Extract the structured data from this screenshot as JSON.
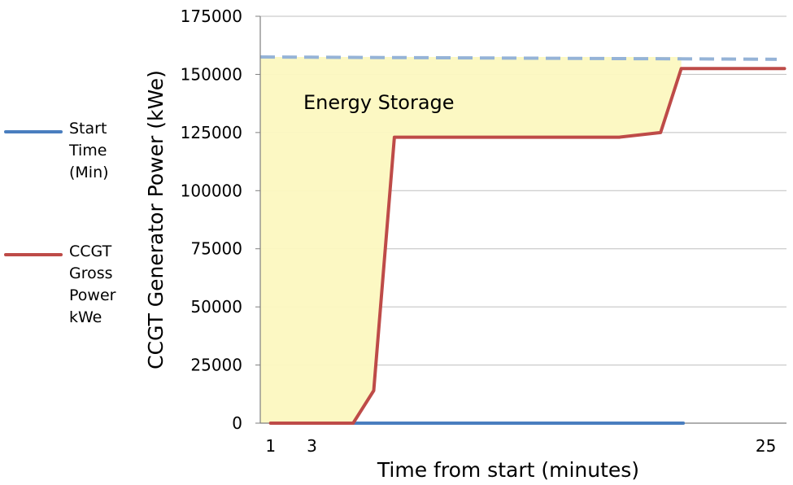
{
  "chart_data": {
    "type": "line",
    "ylabel": "CCGT Generator Power (kWe)",
    "xlabel": "Time from start (minutes)",
    "ylim": [
      0,
      175000
    ],
    "yticks": [
      0,
      25000,
      50000,
      75000,
      100000,
      125000,
      150000,
      175000
    ],
    "ytick_labels": [
      "0",
      "25000",
      "50000",
      "75000",
      "100000",
      "125000",
      "150000",
      "175000"
    ],
    "xlim": [
      0.5,
      26
    ],
    "xticks": [
      1,
      3,
      25
    ],
    "xtick_labels": [
      "1",
      "3",
      "25"
    ],
    "grid": "horizontal",
    "legend_position": "left",
    "series": [
      {
        "name": "Start Time (Min)",
        "color": "#4a7ebf",
        "x": [
          5,
          21
        ],
        "y": [
          0,
          0
        ]
      },
      {
        "name": "CCGT Gross Power kWe",
        "color": "#be4b48",
        "x": [
          1,
          5,
          6,
          7,
          9.3,
          17.9,
          19.9,
          20.9,
          25.9
        ],
        "y": [
          0,
          0,
          14000,
          123000,
          123000,
          123000,
          125000,
          152500,
          152500
        ]
      }
    ],
    "reference_line": {
      "style": "dashed",
      "color": "#95b3d7",
      "y_start": 157500,
      "y_end": 156500
    },
    "shaded_region": {
      "label": "Energy Storage",
      "color": "#fcf8c0"
    }
  }
}
